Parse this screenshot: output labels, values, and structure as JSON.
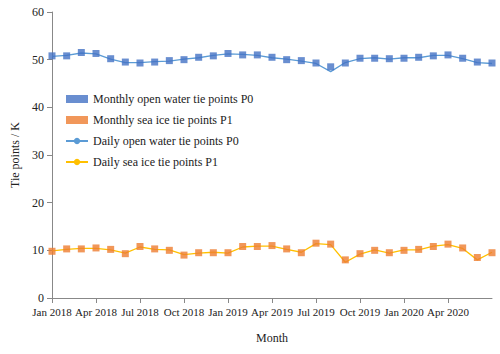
{
  "chart_data": {
    "type": "line",
    "x_label": "Month",
    "y_label": "Tie points / K",
    "categories": [
      "Jan 2018",
      null,
      null,
      "Apr 2018",
      null,
      null,
      "Jul 2018",
      null,
      null,
      "Oct 2018",
      null,
      null,
      "Jan 2019",
      null,
      null,
      "Apr 2019",
      null,
      null,
      "Jul 2019",
      null,
      null,
      "Oct 2019",
      null,
      null,
      "Jan 2020",
      null,
      null,
      "Apr 2020",
      null,
      null,
      null
    ],
    "ylim": [
      0,
      60
    ],
    "yticks": [
      0,
      10,
      20,
      30,
      40,
      50,
      60
    ],
    "grid": false,
    "legend": "left",
    "series": [
      {
        "name": "Monthly open water tie points P0",
        "type": "scatter",
        "marker": "square",
        "color": "#4472c4",
        "values": [
          50.8,
          50.8,
          51.5,
          51.3,
          50.2,
          49.5,
          49.3,
          49.5,
          49.8,
          50.0,
          50.5,
          50.8,
          51.3,
          51.0,
          51.0,
          50.5,
          50.0,
          49.8,
          49.3,
          48.5,
          49.3,
          50.3,
          50.3,
          50.2,
          50.3,
          50.5,
          50.8,
          51.0,
          50.3,
          49.5,
          49.3
        ]
      },
      {
        "name": "Monthly sea ice tie points P1",
        "type": "scatter",
        "marker": "square",
        "color": "#ed7d31",
        "values": [
          9.8,
          10.3,
          10.3,
          10.5,
          10.2,
          9.3,
          10.8,
          10.3,
          10.0,
          9.0,
          9.5,
          9.5,
          9.5,
          10.8,
          10.8,
          11.0,
          10.3,
          9.5,
          11.5,
          11.3,
          8.0,
          9.3,
          10.0,
          9.5,
          10.0,
          10.2,
          10.8,
          11.3,
          10.5,
          8.5,
          9.5
        ]
      },
      {
        "name": "Daily open water tie points P0",
        "type": "line",
        "marker": "none",
        "color": "#5b9bd5",
        "values": [
          50.7,
          50.9,
          51.4,
          51.2,
          50.1,
          49.4,
          49.4,
          49.6,
          49.7,
          50.1,
          50.4,
          50.9,
          51.2,
          51.1,
          50.9,
          50.4,
          50.1,
          49.7,
          49.2,
          47.5,
          49.4,
          50.2,
          50.4,
          50.1,
          50.4,
          50.4,
          50.9,
          50.9,
          50.2,
          49.4,
          49.2
        ]
      },
      {
        "name": "Daily sea ice tie points P1",
        "type": "line",
        "marker": "none",
        "color": "#ffc000",
        "values": [
          9.9,
          10.2,
          10.4,
          10.4,
          10.1,
          9.4,
          10.7,
          10.2,
          10.1,
          9.1,
          9.4,
          9.6,
          9.4,
          10.7,
          10.9,
          10.9,
          10.2,
          9.6,
          11.4,
          11.2,
          7.5,
          9.2,
          10.1,
          9.4,
          10.1,
          10.1,
          10.9,
          11.2,
          10.4,
          8.0,
          9.6
        ]
      }
    ]
  }
}
